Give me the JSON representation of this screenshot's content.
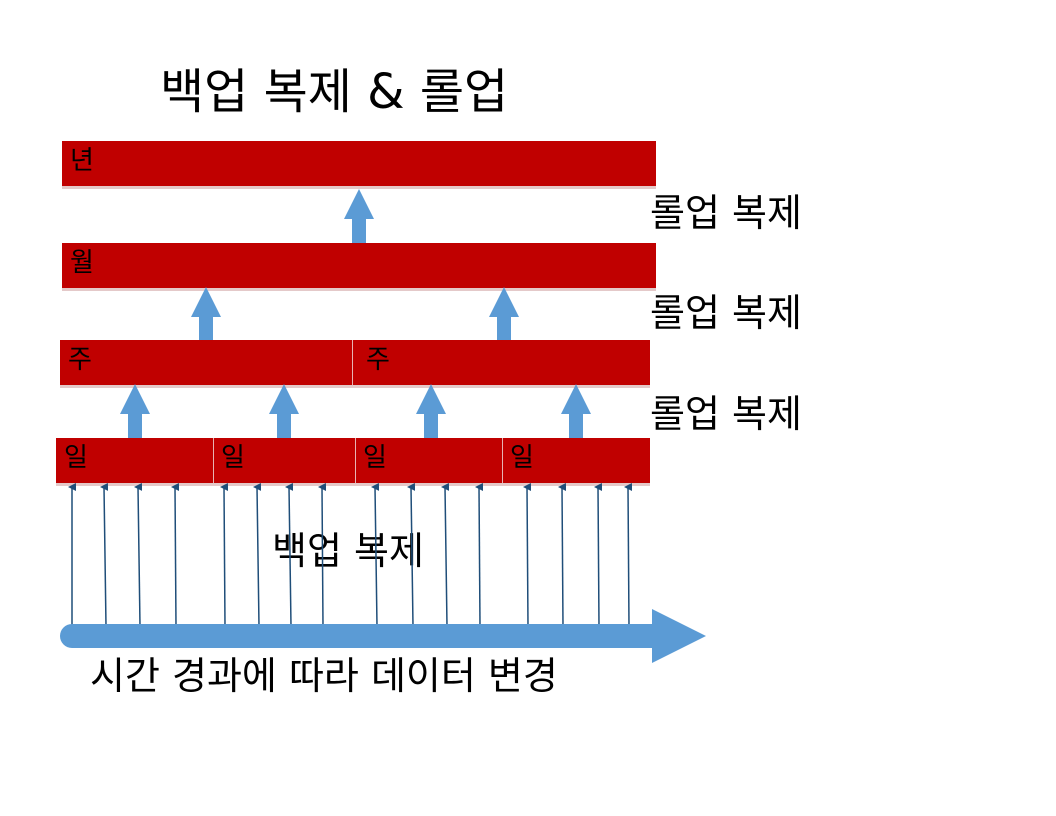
{
  "title": "백업 복제 & 롤업",
  "levels": {
    "year": "년",
    "month": "월",
    "week": [
      "주",
      "주"
    ],
    "day": [
      "일",
      "일",
      "일",
      "일"
    ]
  },
  "rollup_labels": [
    "롤업 복제",
    "롤업 복제",
    "롤업 복제"
  ],
  "backup_label": "백업 복제",
  "timeline_label": "시간 경과에 따라 데이터 변경",
  "colors": {
    "bar": "#c00000",
    "arrow": "#5b9bd5",
    "tick_arrow": "#1f4e79"
  }
}
